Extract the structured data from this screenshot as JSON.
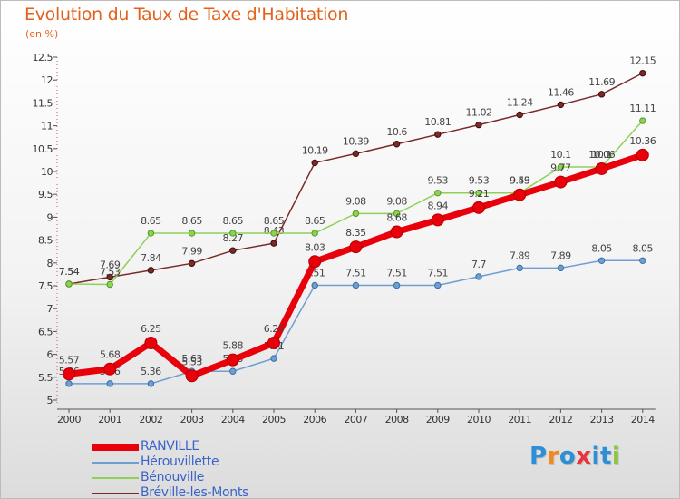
{
  "header": {
    "title": "Evolution du Taux de Taxe d'Habitation",
    "unit": "(en %)"
  },
  "logo": {
    "letters": [
      "P",
      "r",
      "o",
      "x",
      "i",
      "t",
      "i"
    ],
    "colors": [
      "#2d8fd5",
      "#f08a1f",
      "#2d8fd5",
      "#e8343b",
      "#2d8fd5",
      "#2d8fd5",
      "#8cc63f"
    ]
  },
  "chart_data": {
    "type": "line",
    "categories": [
      "2000",
      "2001",
      "2002",
      "2003",
      "2004",
      "2005",
      "2006",
      "2007",
      "2008",
      "2009",
      "2010",
      "2011",
      "2012",
      "2013",
      "2014"
    ],
    "ylim": [
      5,
      12.5
    ],
    "yticks": [
      "5",
      "5.5",
      "6",
      "6.5",
      "7",
      "7.5",
      "8",
      "8.5",
      "9",
      "9.5",
      "10",
      "10.5",
      "11",
      "11.5",
      "12",
      "12.5"
    ],
    "grid": false,
    "legend_position": "bottom-left",
    "series": [
      {
        "name": "RANVILLE",
        "color": "#e8000b",
        "values": [
          5.57,
          5.68,
          6.25,
          5.53,
          5.88,
          6.25,
          8.03,
          8.35,
          8.68,
          8.94,
          9.21,
          9.49,
          9.77,
          10.06,
          10.36
        ],
        "labels": [
          "5.57",
          "5.68",
          "6.25",
          "5.53",
          "5.88",
          "6.25",
          "8.03",
          "8.35",
          "8.68",
          "8.94",
          "9.21",
          "9.49",
          "9.77",
          "10.06",
          "10.36"
        ]
      },
      {
        "name": "Hérouvillette",
        "color": "#6f9fd0",
        "values": [
          5.36,
          5.36,
          5.36,
          5.63,
          5.63,
          5.91,
          7.51,
          7.51,
          7.51,
          7.51,
          7.7,
          7.89,
          7.89,
          8.05,
          8.05
        ],
        "labels": [
          "5.36",
          "5.36",
          "5.36",
          "5.63",
          "5.63",
          "5.91",
          "7.51",
          "7.51",
          "7.51",
          "7.51",
          "7.7",
          "7.89",
          "7.89",
          "8.05",
          "8.05"
        ]
      },
      {
        "name": "Bénouville",
        "color": "#8fd158",
        "values": [
          7.54,
          7.53,
          8.65,
          8.65,
          8.65,
          8.65,
          8.65,
          9.08,
          9.08,
          9.53,
          9.53,
          9.53,
          10.1,
          10.1,
          11.11
        ],
        "labels": [
          "7.54",
          "7.53",
          "8.65",
          "8.65",
          "8.65",
          "8.65",
          "8.65",
          "9.08",
          "9.08",
          "9.53",
          "9.53",
          "9.53",
          "10.1",
          "10.1",
          "11.11"
        ]
      },
      {
        "name": "Bréville-les-Monts",
        "color": "#7a2a28",
        "values": [
          7.54,
          7.69,
          7.84,
          7.99,
          8.27,
          8.43,
          10.19,
          10.39,
          10.6,
          10.81,
          11.02,
          11.24,
          11.46,
          11.69,
          12.15
        ],
        "labels": [
          "7.54",
          "7.69",
          "7.84",
          "7.99",
          "8.27",
          "8.43",
          "10.19",
          "10.39",
          "10.6",
          "10.81",
          "11.02",
          "11.24",
          "11.46",
          "11.69",
          "12.15"
        ]
      }
    ]
  }
}
